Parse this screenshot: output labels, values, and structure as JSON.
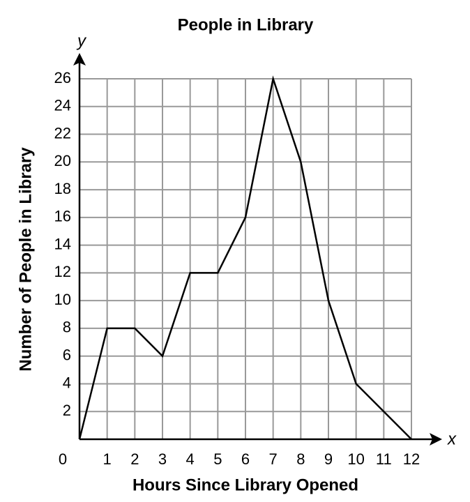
{
  "chart_data": {
    "type": "line",
    "title": "People in Library",
    "x_label": "Hours Since Library Opened",
    "y_label": "Number of People in Library",
    "x_axis_letter": "x",
    "y_axis_letter": "y",
    "x": [
      0,
      1,
      2,
      3,
      4,
      5,
      6,
      7,
      8,
      9,
      10,
      11,
      12
    ],
    "values": [
      0,
      8,
      8,
      6,
      12,
      12,
      16,
      26,
      20,
      10,
      4,
      2,
      0
    ],
    "color": "#000000",
    "xlim": [
      0,
      12
    ],
    "ylim": [
      0,
      26
    ],
    "xticks": [
      0,
      1,
      2,
      3,
      4,
      5,
      6,
      7,
      8,
      9,
      10,
      11,
      12
    ],
    "yticks": [
      2,
      4,
      6,
      8,
      10,
      12,
      14,
      16,
      18,
      20,
      22,
      24,
      26
    ],
    "grid": true
  }
}
